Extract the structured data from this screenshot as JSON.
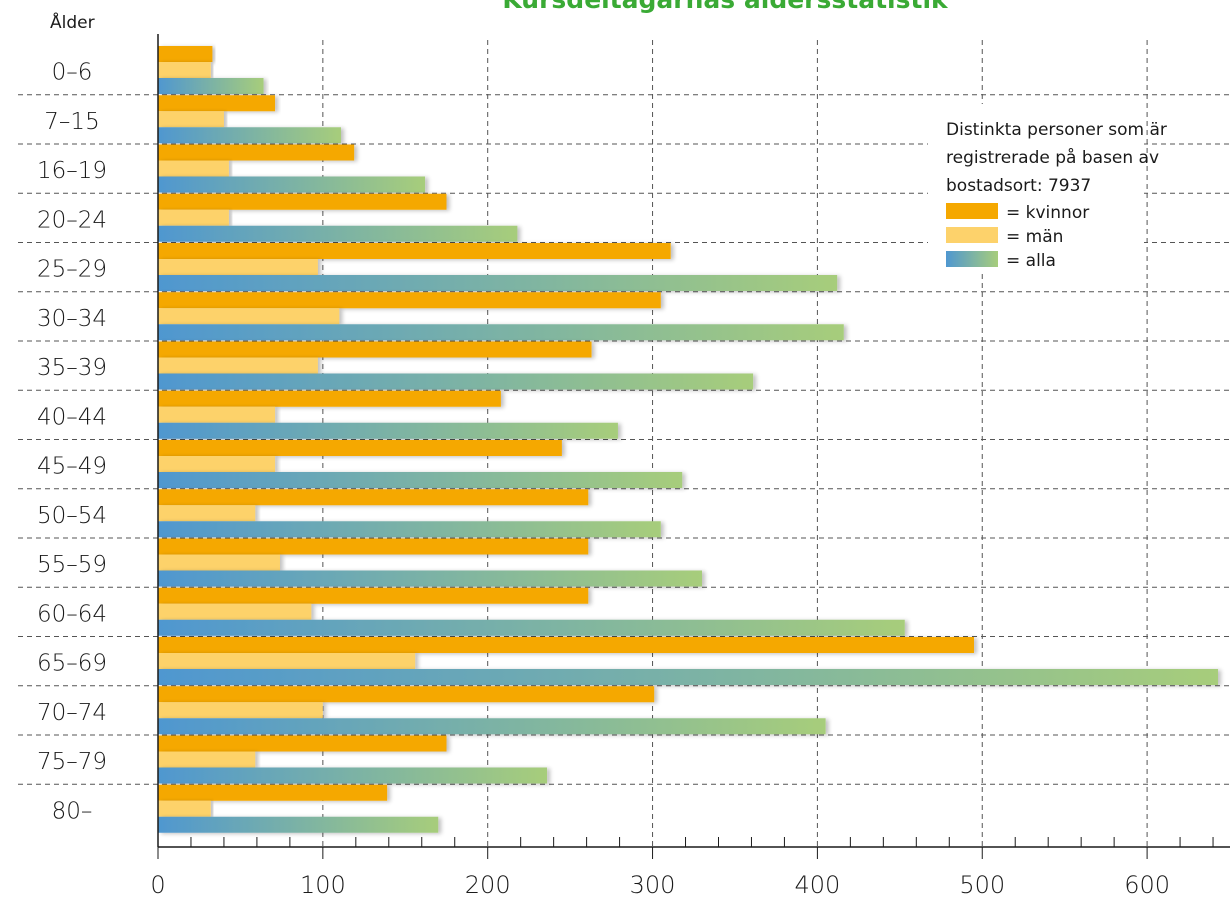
{
  "chart_data": {
    "type": "bar",
    "orientation": "horizontal",
    "title": "Kursdeltagarnas åldersstatistik",
    "ylabel": "Ålder",
    "xlabel": "",
    "xlim": [
      0,
      650
    ],
    "x_ticks": [
      "0",
      "100",
      "200",
      "300",
      "400",
      "500",
      "600"
    ],
    "grid": true,
    "legend_position": "right",
    "categories": [
      "0–6",
      "7–15",
      "16–19",
      "20–24",
      "25–29",
      "30–34",
      "35–39",
      "40–44",
      "45–49",
      "50–54",
      "55–59",
      "60–64",
      "65–69",
      "70–74",
      "75–79",
      "80–"
    ],
    "series": [
      {
        "name": "kvinnor",
        "values": [
          33,
          71,
          119,
          175,
          311,
          305,
          263,
          208,
          245,
          261,
          261,
          261,
          495,
          301,
          175,
          139
        ]
      },
      {
        "name": "män",
        "values": [
          32,
          40,
          43,
          43,
          97,
          110,
          97,
          71,
          71,
          59,
          74,
          93,
          156,
          100,
          59,
          32
        ]
      },
      {
        "name": "alla",
        "values": [
          64,
          111,
          162,
          218,
          412,
          416,
          361,
          279,
          318,
          305,
          330,
          453,
          643,
          405,
          236,
          170
        ]
      }
    ],
    "note": "Distinkta personer som är registrerade på basen av bostadsort: 7937",
    "note_lines": [
      "Distinkta personer som är",
      "registrerade på basen av",
      "bostadsort: 7937"
    ],
    "legend": [
      "= kvinnor",
      "= män",
      "= alla"
    ],
    "colors": {
      "title": "#3aaa35",
      "kvinnor": "#f5a800",
      "man": "#fdd26b",
      "alla_start": "#4f97d0",
      "alla_end": "#a7cd7b",
      "grid": "#555555",
      "axis": "#1a1a1a"
    }
  }
}
